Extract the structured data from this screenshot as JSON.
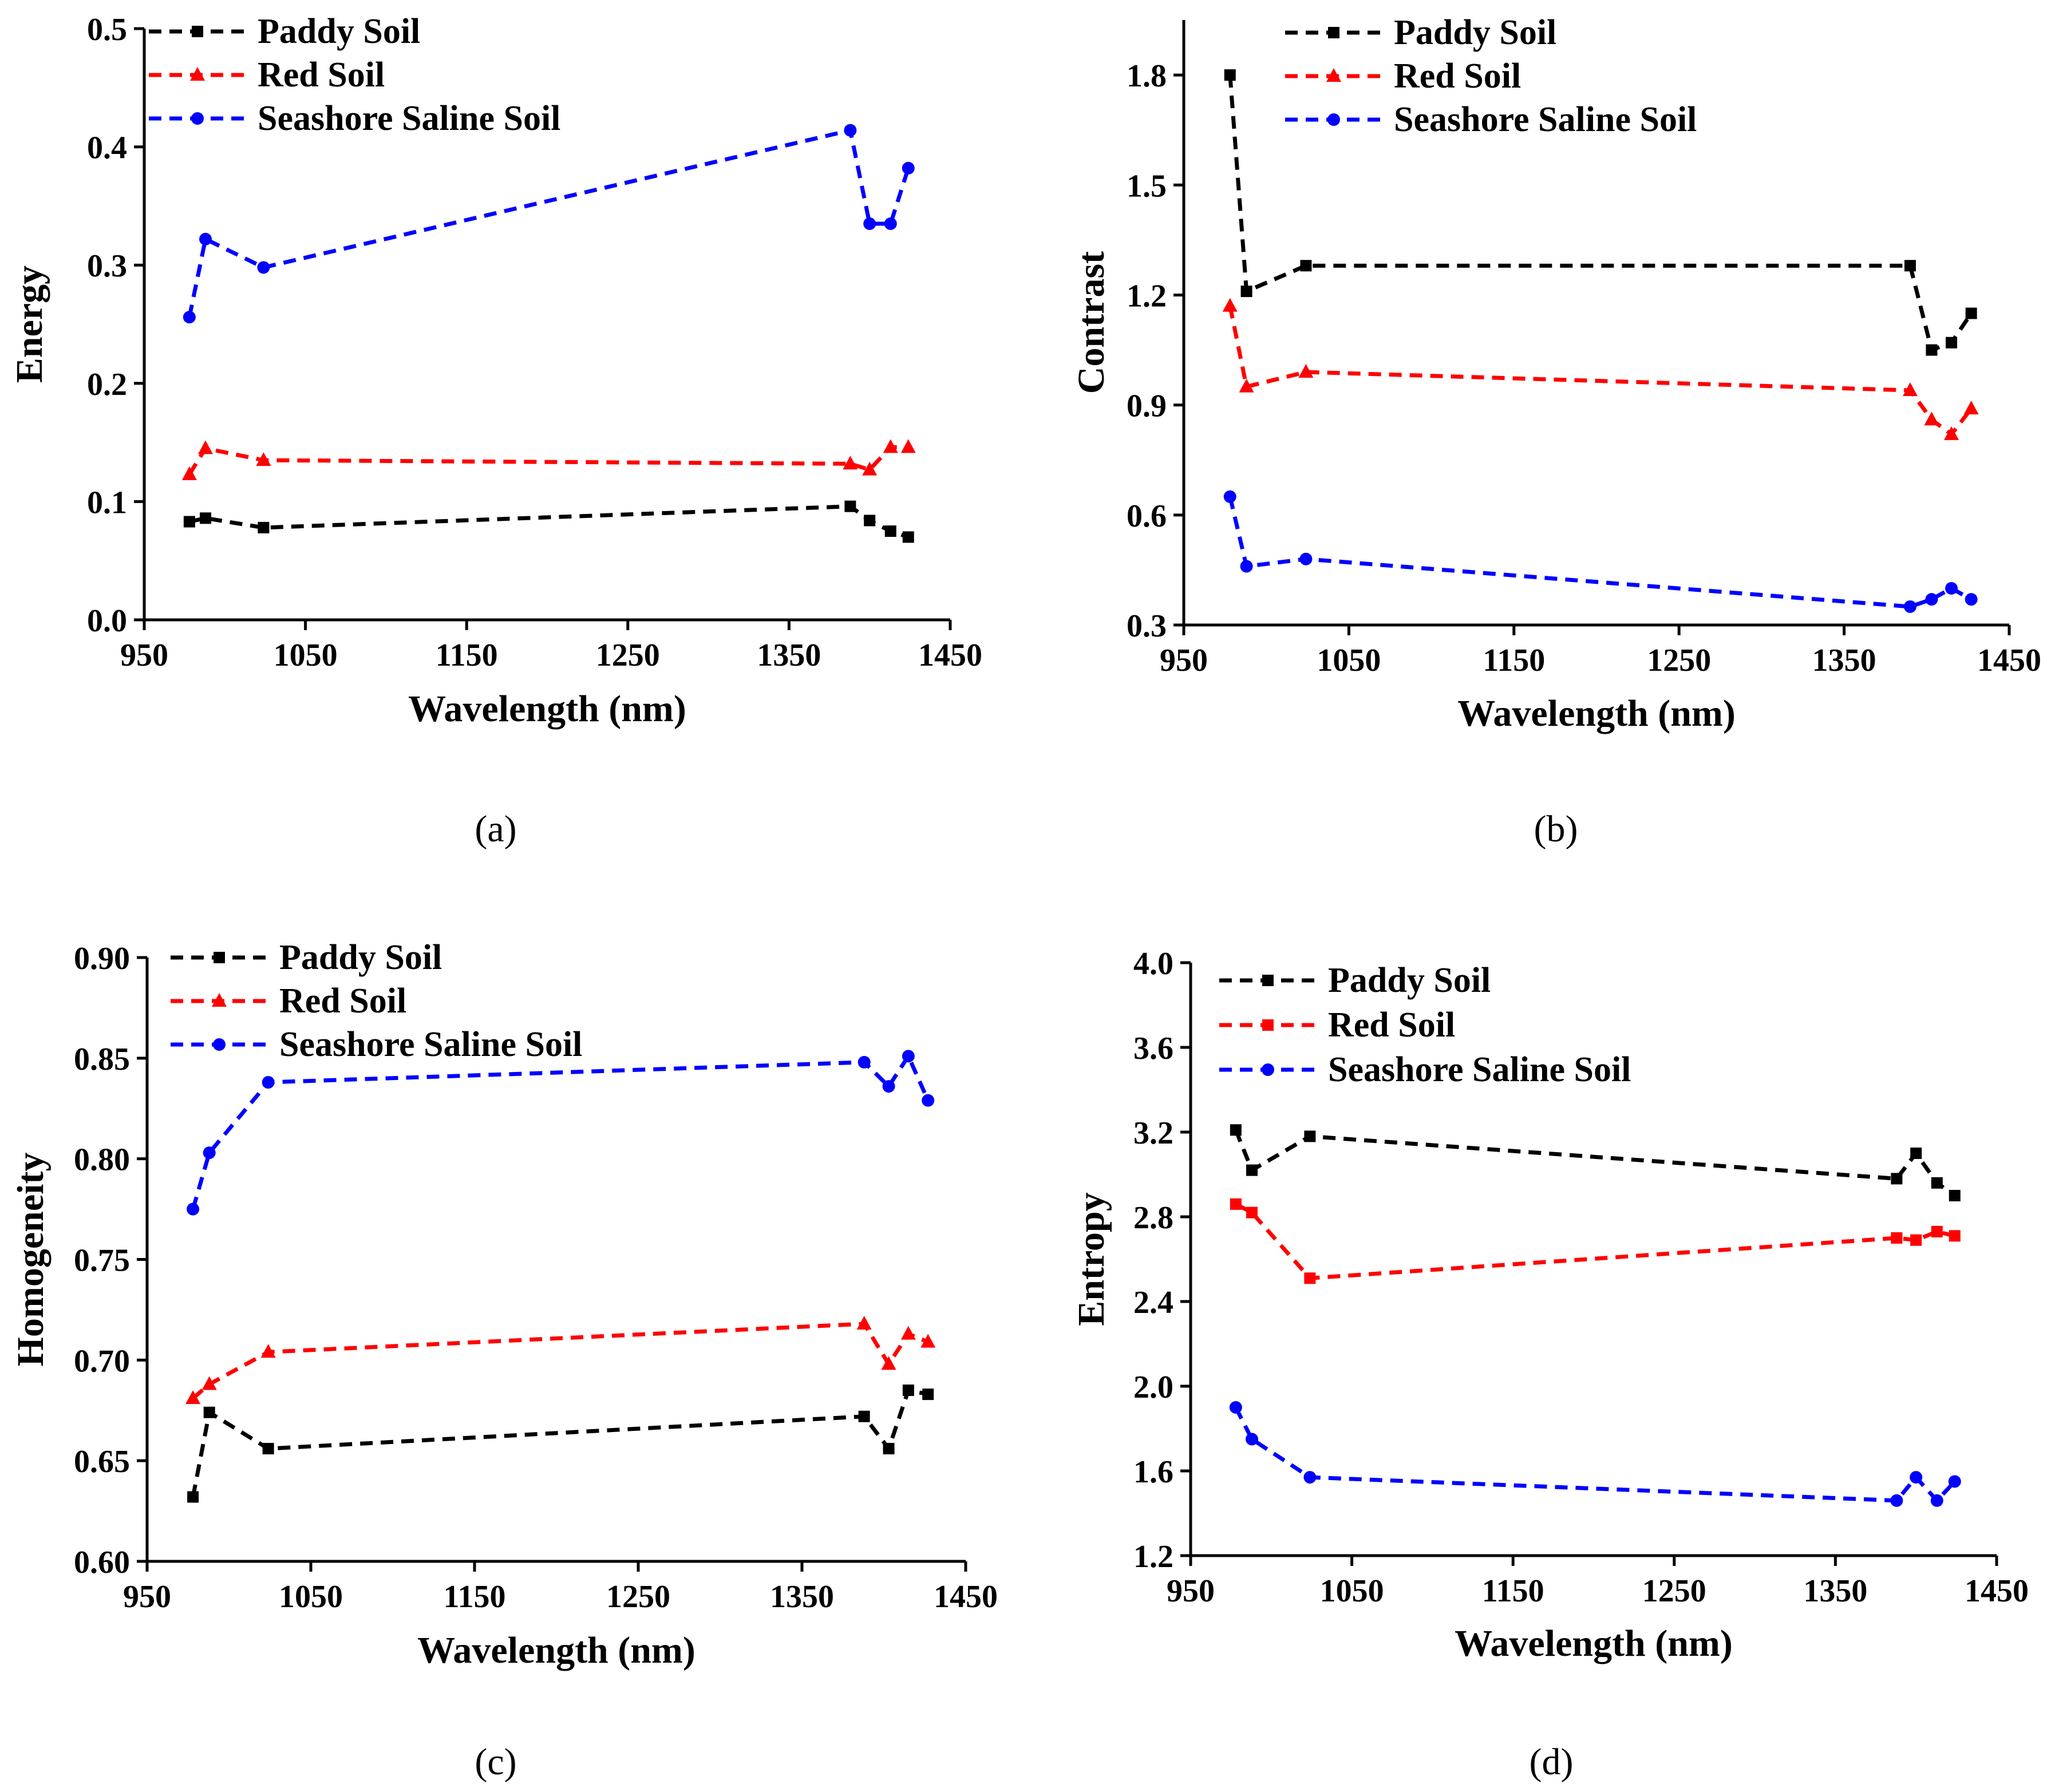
{
  "chart_data": [
    {
      "type": "line",
      "caption": "(a)",
      "xlabel": "Wavelength (nm)",
      "ylabel": "Energy",
      "xlim": [
        950,
        1450
      ],
      "ylim": [
        0.0,
        0.5
      ],
      "xticks": [
        950,
        1050,
        1150,
        1250,
        1350,
        1450
      ],
      "yticks": [
        0.0,
        0.1,
        0.2,
        0.3,
        0.4,
        0.5
      ],
      "ytick_labels": [
        "0.0",
        "0.1",
        "0.2",
        "0.3",
        "0.4",
        "0.5"
      ],
      "legend_position": "top-left",
      "grid": false,
      "series": [
        {
          "name": "Paddy Soil",
          "color": "#000000",
          "marker": "square",
          "x": [
            978,
            988,
            1024,
            1388,
            1400,
            1413,
            1424
          ],
          "y": [
            0.083,
            0.086,
            0.078,
            0.096,
            0.084,
            0.075,
            0.07
          ]
        },
        {
          "name": "Red Soil",
          "color": "#ff0000",
          "marker": "triangle",
          "x": [
            978,
            988,
            1024,
            1388,
            1400,
            1413,
            1424
          ],
          "y": [
            0.123,
            0.145,
            0.135,
            0.132,
            0.127,
            0.146,
            0.146
          ]
        },
        {
          "name": "Seashore Saline Soil",
          "color": "#0000ff",
          "marker": "circle",
          "x": [
            978,
            988,
            1024,
            1388,
            1400,
            1413,
            1424
          ],
          "y": [
            0.256,
            0.322,
            0.298,
            0.414,
            0.335,
            0.335,
            0.382
          ]
        }
      ]
    },
    {
      "type": "line",
      "caption": "(b)",
      "xlabel": "Wavelength (nm)",
      "ylabel": "Contrast",
      "xlim": [
        950,
        1450
      ],
      "ylim": [
        0.3,
        1.95
      ],
      "xticks": [
        950,
        1050,
        1150,
        1250,
        1350,
        1450
      ],
      "yticks": [
        0.3,
        0.6,
        0.9,
        1.2,
        1.5,
        1.8
      ],
      "ytick_labels": [
        "0.3",
        "0.6",
        "0.9",
        "1.2",
        "1.5",
        "1.8"
      ],
      "legend_position": "top-center",
      "grid": false,
      "series": [
        {
          "name": "Paddy Soil",
          "color": "#000000",
          "marker": "square",
          "x": [
            978,
            988,
            1024,
            1390,
            1403,
            1415,
            1427
          ],
          "y": [
            1.8,
            1.21,
            1.28,
            1.28,
            1.05,
            1.07,
            1.15
          ]
        },
        {
          "name": "Red Soil",
          "color": "#ff0000",
          "marker": "triangle",
          "x": [
            978,
            988,
            1024,
            1390,
            1403,
            1415,
            1427
          ],
          "y": [
            1.17,
            0.95,
            0.99,
            0.94,
            0.86,
            0.82,
            0.89
          ]
        },
        {
          "name": "Seashore Saline Soil",
          "color": "#0000ff",
          "marker": "circle",
          "x": [
            978,
            988,
            1024,
            1390,
            1403,
            1415,
            1427
          ],
          "y": [
            0.65,
            0.46,
            0.48,
            0.35,
            0.37,
            0.4,
            0.37
          ]
        }
      ]
    },
    {
      "type": "line",
      "caption": "(c)",
      "xlabel": "Wavelength (nm)",
      "ylabel": "Homogeneity",
      "xlim": [
        950,
        1450
      ],
      "ylim": [
        0.6,
        0.9
      ],
      "xticks": [
        950,
        1050,
        1150,
        1250,
        1350,
        1450
      ],
      "yticks": [
        0.6,
        0.65,
        0.7,
        0.75,
        0.8,
        0.85,
        0.9
      ],
      "ytick_labels": [
        "0.60",
        "0.65",
        "0.70",
        "0.75",
        "0.80",
        "0.85",
        "0.90"
      ],
      "legend_position": "top-left",
      "grid": false,
      "series": [
        {
          "name": "Paddy Soil",
          "color": "#000000",
          "marker": "square",
          "x": [
            978,
            988,
            1024,
            1388,
            1403,
            1415,
            1427
          ],
          "y": [
            0.632,
            0.674,
            0.656,
            0.672,
            0.656,
            0.685,
            0.683
          ]
        },
        {
          "name": "Red Soil",
          "color": "#ff0000",
          "marker": "triangle",
          "x": [
            978,
            988,
            1024,
            1388,
            1403,
            1415,
            1427
          ],
          "y": [
            0.681,
            0.688,
            0.704,
            0.718,
            0.698,
            0.713,
            0.709
          ]
        },
        {
          "name": "Seashore Saline Soil",
          "color": "#0000ff",
          "marker": "circle",
          "x": [
            978,
            988,
            1024,
            1388,
            1403,
            1415,
            1427
          ],
          "y": [
            0.775,
            0.803,
            0.838,
            0.848,
            0.836,
            0.851,
            0.829
          ]
        }
      ]
    },
    {
      "type": "line",
      "caption": "(d)",
      "xlabel": "Wavelength (nm)",
      "ylabel": "Entropy",
      "xlim": [
        950,
        1450
      ],
      "ylim": [
        1.2,
        4.0
      ],
      "xticks": [
        950,
        1050,
        1150,
        1250,
        1350,
        1450
      ],
      "yticks": [
        1.2,
        1.6,
        2.0,
        2.4,
        2.8,
        3.2,
        3.6,
        4.0
      ],
      "ytick_labels": [
        "1.2",
        "1.6",
        "2.0",
        "2.4",
        "2.8",
        "3.2",
        "3.6",
        "4.0"
      ],
      "legend_position": "top-left",
      "grid": false,
      "series": [
        {
          "name": "Paddy Soil",
          "color": "#000000",
          "marker": "square",
          "x": [
            978,
            988,
            1024,
            1388,
            1400,
            1413,
            1424
          ],
          "y": [
            3.21,
            3.02,
            3.18,
            2.98,
            3.1,
            2.96,
            2.9
          ]
        },
        {
          "name": "Red Soil",
          "color": "#ff0000",
          "marker": "square",
          "x": [
            978,
            988,
            1024,
            1388,
            1400,
            1413,
            1424
          ],
          "y": [
            2.86,
            2.82,
            2.51,
            2.7,
            2.69,
            2.73,
            2.71
          ]
        },
        {
          "name": "Seashore Saline Soil",
          "color": "#0000ff",
          "marker": "circle",
          "x": [
            978,
            988,
            1024,
            1388,
            1400,
            1413,
            1424
          ],
          "y": [
            1.9,
            1.75,
            1.57,
            1.46,
            1.57,
            1.46,
            1.55
          ]
        }
      ]
    }
  ]
}
